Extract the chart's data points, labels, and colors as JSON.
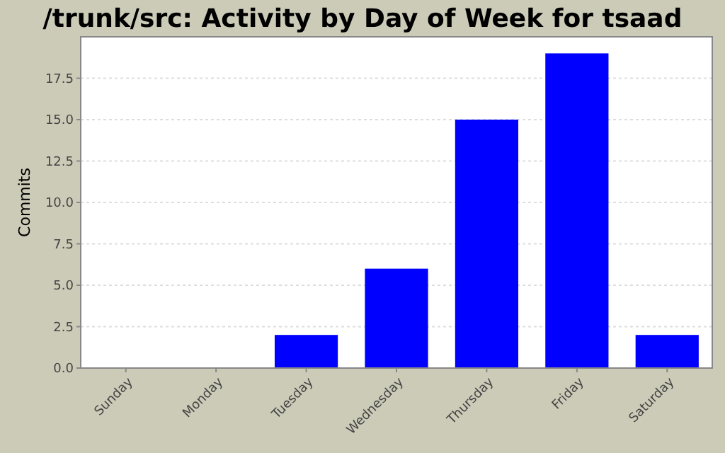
{
  "chart_data": {
    "type": "bar",
    "title": "/trunk/src: Activity by Day of Week for tsaad",
    "ylabel": "Commits",
    "categories": [
      "Sunday",
      "Monday",
      "Tuesday",
      "Wednesday",
      "Thursday",
      "Friday",
      "Saturday"
    ],
    "values": [
      0,
      0,
      2,
      6,
      15,
      19,
      2
    ],
    "color": "#0000ff",
    "ylim": [
      0,
      20
    ],
    "yticks": [
      {
        "value": 0,
        "label": "0.0"
      },
      {
        "value": 2.5,
        "label": "2.5"
      },
      {
        "value": 5,
        "label": "5.0"
      },
      {
        "value": 7.5,
        "label": "7.5"
      },
      {
        "value": 10,
        "label": "10.0"
      },
      {
        "value": 12.5,
        "label": "12.5"
      },
      {
        "value": 15,
        "label": "15.0"
      },
      {
        "value": 17.5,
        "label": "17.5"
      }
    ],
    "grid": "y"
  }
}
